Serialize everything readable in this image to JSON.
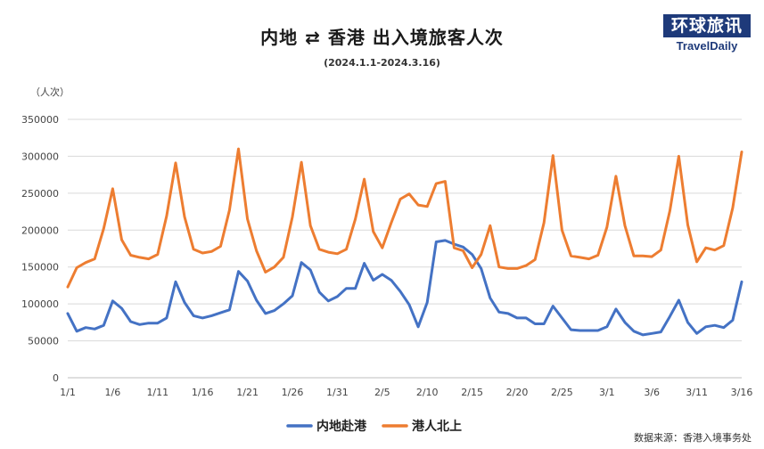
{
  "header": {
    "title": "内地 ⇄ 香港 出入境旅客人次",
    "subtitle": "(2024.1.1-2024.3.16)"
  },
  "logo": {
    "cn": "环球旅讯",
    "en": "TravelDaily"
  },
  "source": "数据来源：香港入境事务处",
  "colors": {
    "series1": "#4472c4",
    "series2": "#ed7d31",
    "grid": "#d9d9d9"
  },
  "chart_data": {
    "type": "line",
    "ylabel": "（人次）",
    "ylim": [
      0,
      350000
    ],
    "yticks": [
      0,
      50000,
      100000,
      150000,
      200000,
      250000,
      300000,
      350000
    ],
    "xlabels": [
      "1/1",
      "1/6",
      "1/11",
      "1/16",
      "1/21",
      "1/26",
      "1/31",
      "2/5",
      "2/10",
      "2/15",
      "2/20",
      "2/25",
      "3/1",
      "3/6",
      "3/11",
      "3/16"
    ],
    "legend_position": "bottom",
    "grid": true,
    "series": [
      {
        "name": "内地赴港",
        "values": [
          87000,
          63000,
          68000,
          66000,
          71000,
          104000,
          94000,
          76000,
          72000,
          74000,
          74000,
          81000,
          130000,
          102000,
          84000,
          81000,
          84000,
          88000,
          92000,
          144000,
          131000,
          105000,
          87000,
          91000,
          100000,
          111000,
          156000,
          146000,
          116000,
          104000,
          110000,
          121000,
          121000,
          155000,
          132000,
          140000,
          132000,
          117000,
          99000,
          69000,
          102000,
          184000,
          186000,
          181000,
          177000,
          167000,
          148000,
          108000,
          89000,
          87000,
          81000,
          81000,
          73000,
          73000,
          97000,
          81000,
          65000,
          64000,
          64000,
          64000,
          69000,
          93000,
          75000,
          63000,
          58000,
          60000,
          62000,
          83000,
          105000,
          75000,
          60000,
          69000,
          71000,
          68000,
          78000,
          130000
        ]
      },
      {
        "name": "港人北上",
        "values": [
          123000,
          149000,
          156000,
          161000,
          202000,
          256000,
          187000,
          166000,
          163000,
          161000,
          167000,
          219000,
          291000,
          218000,
          174000,
          169000,
          171000,
          178000,
          227000,
          310000,
          215000,
          172000,
          143000,
          150000,
          163000,
          218000,
          292000,
          206000,
          174000,
          170000,
          168000,
          174000,
          215000,
          269000,
          198000,
          176000,
          210000,
          242000,
          249000,
          234000,
          232000,
          263000,
          266000,
          176000,
          172000,
          149000,
          167000,
          206000,
          150000,
          148000,
          148000,
          152000,
          160000,
          210000,
          301000,
          200000,
          165000,
          163000,
          161000,
          166000,
          204000,
          273000,
          206000,
          165000,
          165000,
          164000,
          173000,
          226000,
          300000,
          207000,
          157000,
          176000,
          173000,
          179000,
          230000,
          306000
        ]
      }
    ]
  }
}
